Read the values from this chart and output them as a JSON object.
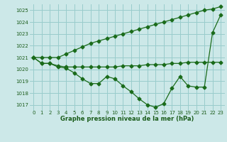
{
  "background_color": "#cce8e8",
  "grid_color": "#99cccc",
  "line_color": "#1a6b1a",
  "text_color": "#1a5c1a",
  "xlabel": "Graphe pression niveau de la mer (hPa)",
  "xlim": [
    -0.5,
    23.5
  ],
  "ylim": [
    1016.5,
    1025.5
  ],
  "yticks": [
    1017,
    1018,
    1019,
    1020,
    1021,
    1022,
    1023,
    1024,
    1025
  ],
  "xticks": [
    0,
    1,
    2,
    3,
    4,
    5,
    6,
    7,
    8,
    9,
    10,
    11,
    12,
    13,
    14,
    15,
    16,
    17,
    18,
    19,
    20,
    21,
    22,
    23
  ],
  "line1": [
    1021.0,
    1020.5,
    1020.5,
    1020.2,
    1020.1,
    1019.7,
    1019.2,
    1018.8,
    1018.8,
    1019.4,
    1019.2,
    1018.6,
    1018.1,
    1017.5,
    1017.0,
    1016.8,
    1017.1,
    1018.4,
    1019.4,
    1018.6,
    1018.5,
    1018.5,
    1023.1,
    1024.6
  ],
  "line2": [
    1021.0,
    1020.5,
    1020.5,
    1020.3,
    1020.2,
    1020.2,
    1020.2,
    1020.2,
    1020.2,
    1020.2,
    1020.2,
    1020.3,
    1020.3,
    1020.3,
    1020.4,
    1020.4,
    1020.4,
    1020.5,
    1020.5,
    1020.6,
    1020.6,
    1020.6,
    1020.6,
    1020.6
  ],
  "line3": [
    1021.0,
    1021.0,
    1021.0,
    1021.0,
    1021.3,
    1021.6,
    1021.9,
    1022.2,
    1022.4,
    1022.6,
    1022.8,
    1023.0,
    1023.2,
    1023.4,
    1023.6,
    1023.8,
    1024.0,
    1024.2,
    1024.4,
    1024.6,
    1024.8,
    1025.0,
    1025.1,
    1025.3
  ]
}
